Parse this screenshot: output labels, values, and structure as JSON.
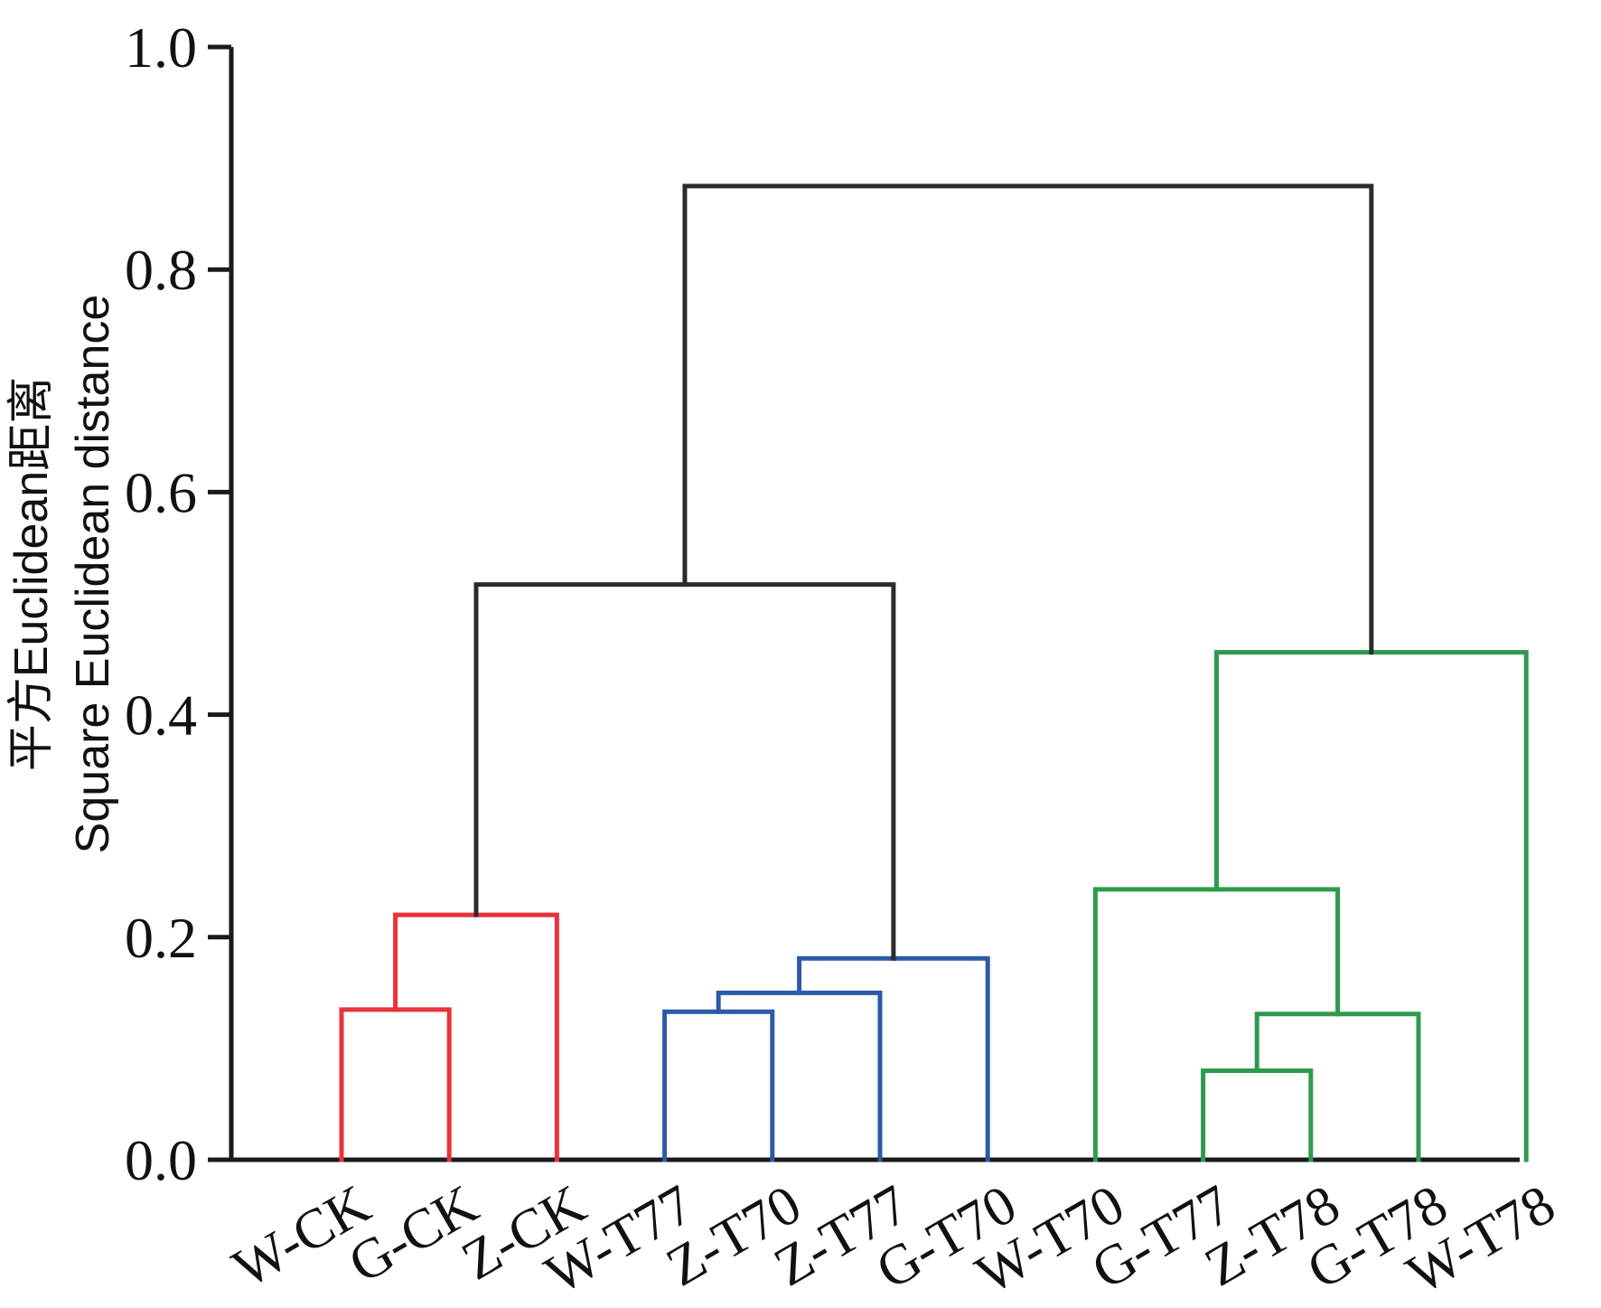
{
  "chart_data": {
    "type": "dendrogram",
    "ylabel": [
      "平方Euclidean距离",
      "Square Euclidean distance"
    ],
    "ylim": [
      0,
      1.0
    ],
    "yticks": [
      0.0,
      0.2,
      0.4,
      0.6,
      0.8,
      1.0
    ],
    "ytick_labels": [
      "0.0",
      "0.2",
      "0.4",
      "0.6",
      "0.8",
      "1.0"
    ],
    "leaves": [
      "W-CK",
      "G-CK",
      "Z-CK",
      "W-T77",
      "Z-T70",
      "Z-T77",
      "G-T70",
      "W-T70",
      "G-T77",
      "Z-T78",
      "G-T78",
      "W-T78"
    ],
    "colors": {
      "red": "#e8333a",
      "blue": "#2a5aa8",
      "green": "#2e9a4e",
      "black": "#2b2b2b"
    },
    "merges": [
      {
        "id": "m1",
        "left": "W-CK",
        "right": "G-CK",
        "height": 0.135,
        "color": "red"
      },
      {
        "id": "m2",
        "left": "m1",
        "right": "Z-CK",
        "height": 0.22,
        "color": "red"
      },
      {
        "id": "m3",
        "left": "W-T77",
        "right": "Z-T70",
        "height": 0.133,
        "color": "blue"
      },
      {
        "id": "m4",
        "left": "m3",
        "right": "Z-T77",
        "height": 0.15,
        "color": "blue"
      },
      {
        "id": "m5",
        "left": "m4",
        "right": "G-T70",
        "height": 0.181,
        "color": "blue"
      },
      {
        "id": "m6",
        "left": "m2",
        "right": "m5",
        "height": 0.517,
        "color": "black"
      },
      {
        "id": "m7",
        "left": "G-T77",
        "right": "Z-T78",
        "height": 0.08,
        "color": "green"
      },
      {
        "id": "m8",
        "left": "m7",
        "right": "G-T78",
        "height": 0.131,
        "color": "green"
      },
      {
        "id": "m9",
        "left": "W-T70",
        "right": "m8",
        "height": 0.243,
        "color": "green"
      },
      {
        "id": "m10",
        "left": "m9",
        "right": "W-T78",
        "height": 0.456,
        "color": "green"
      },
      {
        "id": "m11",
        "left": "m6",
        "right": "m10",
        "height": 0.875,
        "color": "black"
      }
    ]
  }
}
